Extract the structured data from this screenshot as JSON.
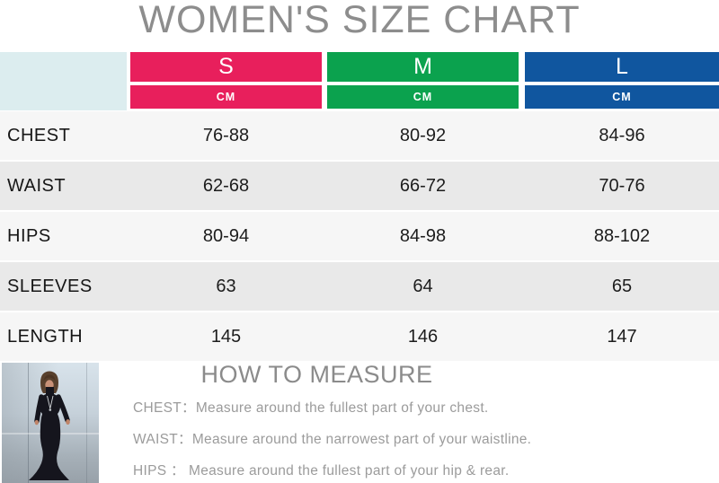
{
  "title": "WOMEN'S SIZE CHART",
  "size_chart": {
    "unit_label": "CM",
    "corner_color": "#dcedef",
    "columns": [
      {
        "label": "S",
        "color": "#e81f5c"
      },
      {
        "label": "M",
        "color": "#0ba24e"
      },
      {
        "label": "L",
        "color": "#10569f"
      }
    ],
    "rows": [
      {
        "label": "CHEST",
        "values": [
          "76-88",
          "80-92",
          "84-96"
        ]
      },
      {
        "label": "WAIST",
        "values": [
          "62-68",
          "66-72",
          "70-76"
        ]
      },
      {
        "label": "HIPS",
        "values": [
          "80-94",
          "84-98",
          "88-102"
        ]
      },
      {
        "label": "SLEEVES",
        "values": [
          "63",
          "64",
          "65"
        ]
      },
      {
        "label": "LENGTH",
        "values": [
          "145",
          "146",
          "147"
        ]
      }
    ]
  },
  "how_to_measure": {
    "heading": "HOW TO MEASURE",
    "instructions": [
      {
        "label": "CHEST：",
        "text": "Measure around the fullest part of your chest."
      },
      {
        "label": "WAIST：",
        "text": "Measure around the narrowest part of your waistline."
      },
      {
        "label": "HIPS ：",
        "text": "Measure around the fullest part of your hip & rear."
      }
    ]
  },
  "product_photo": {
    "description": "model wearing long black turtleneck maxi dress"
  }
}
